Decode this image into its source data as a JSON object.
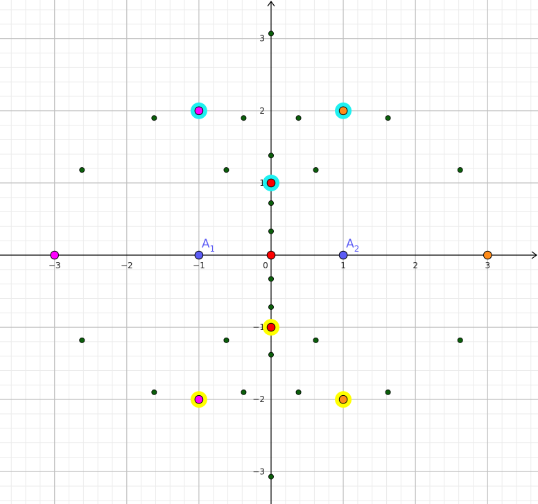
{
  "chart_data": {
    "type": "scatter",
    "title": "",
    "xlabel": "",
    "ylabel": "",
    "xlim": [
      -3.7,
      3.7
    ],
    "ylim": [
      -3.4,
      3.4
    ],
    "grid": true,
    "minor_grid": true,
    "x_ticks": [
      "−3",
      "−2",
      "−1",
      "0",
      "1",
      "2",
      "3"
    ],
    "y_ticks": [
      "3",
      "2",
      "1",
      "−1",
      "−2",
      "−3"
    ],
    "x_tick_values": [
      -3,
      -2,
      -1,
      0,
      1,
      2,
      3
    ],
    "y_tick_values": [
      3,
      2,
      1,
      -1,
      -2,
      -3
    ],
    "colors": {
      "small_dot": "#0b5e0b",
      "red": "#ff0000",
      "orange": "#ff8c1a",
      "magenta": "#ff00ff",
      "blue": "#5c5cf5",
      "cyan_halo": "#1ff0f0",
      "yellow_halo": "#ffff00",
      "label": "#5c5cf5"
    },
    "small_points": [
      [
        0,
        3.07
      ],
      [
        0,
        -3.07
      ],
      [
        -1.62,
        1.9
      ],
      [
        -0.38,
        1.9
      ],
      [
        0.38,
        1.9
      ],
      [
        1.62,
        1.9
      ],
      [
        -1.62,
        -1.9
      ],
      [
        -0.38,
        -1.9
      ],
      [
        0.38,
        -1.9
      ],
      [
        1.62,
        -1.9
      ],
      [
        -2.62,
        1.18
      ],
      [
        -0.62,
        1.18
      ],
      [
        0.62,
        1.18
      ],
      [
        2.62,
        1.18
      ],
      [
        -2.62,
        -1.18
      ],
      [
        -0.62,
        -1.18
      ],
      [
        0.62,
        -1.18
      ],
      [
        2.62,
        -1.18
      ],
      [
        0,
        1.38
      ],
      [
        0,
        0.72
      ],
      [
        0,
        0.33
      ],
      [
        0,
        -0.33
      ],
      [
        0,
        -0.72
      ],
      [
        0,
        -1.38
      ]
    ],
    "colored_points": [
      {
        "x": 0,
        "y": 0,
        "color": "red",
        "halo": ""
      },
      {
        "x": 0,
        "y": 1,
        "color": "red",
        "halo": "cyan_halo"
      },
      {
        "x": 0,
        "y": -1,
        "color": "red",
        "halo": "yellow_halo"
      },
      {
        "x": -1,
        "y": 2,
        "color": "magenta",
        "halo": "cyan_halo"
      },
      {
        "x": 1,
        "y": 2,
        "color": "orange",
        "halo": "cyan_halo"
      },
      {
        "x": -1,
        "y": -2,
        "color": "magenta",
        "halo": "yellow_halo"
      },
      {
        "x": 1,
        "y": -2,
        "color": "orange",
        "halo": "yellow_halo"
      },
      {
        "x": -3,
        "y": 0,
        "color": "magenta",
        "halo": ""
      },
      {
        "x": 3,
        "y": 0,
        "color": "orange",
        "halo": ""
      }
    ],
    "labeled_points": [
      {
        "x": -1,
        "y": 0,
        "letter": "A",
        "index": "1"
      },
      {
        "x": 1,
        "y": 0,
        "letter": "A",
        "index": "2"
      }
    ]
  }
}
